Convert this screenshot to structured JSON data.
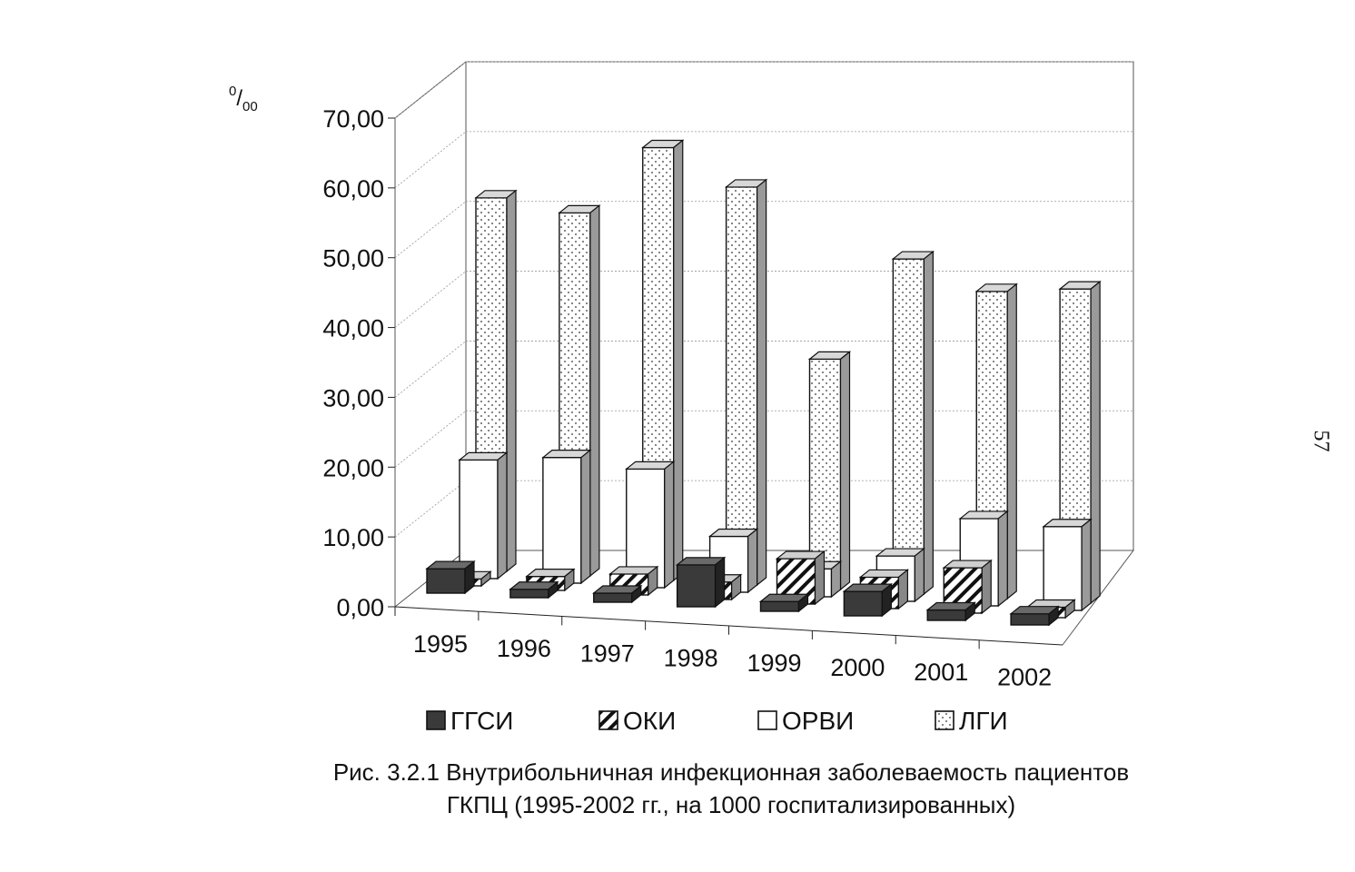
{
  "chart_data": {
    "type": "bar",
    "style": "3d-clustered-depth",
    "categories": [
      "1995",
      "1996",
      "1997",
      "1998",
      "1999",
      "2000",
      "2001",
      "2002"
    ],
    "series": [
      {
        "name": "ГГСИ",
        "values": [
          3.5,
          1.2,
          1.3,
          6.0,
          1.4,
          3.5,
          1.5,
          1.6
        ],
        "pattern": "solid-dark"
      },
      {
        "name": "ОКИ",
        "values": [
          1.0,
          2.0,
          3.0,
          2.5,
          6.5,
          4.5,
          6.5,
          1.5
        ],
        "pattern": "diagonal-hatch"
      },
      {
        "name": "ОРВИ",
        "values": [
          17.0,
          18.0,
          17.0,
          8.0,
          4.0,
          6.5,
          12.5,
          12.0
        ],
        "pattern": "white"
      },
      {
        "name": "ЛГИ",
        "values": [
          53.5,
          52.0,
          62.0,
          57.0,
          33.0,
          48.0,
          44.0,
          45.0
        ],
        "pattern": "dotted"
      }
    ],
    "ylim": [
      0,
      70
    ],
    "yticks": [
      "0,00",
      "10,00",
      "20,00",
      "30,00",
      "40,00",
      "50,00",
      "60,00",
      "70,00"
    ],
    "yunit": {
      "base": "0",
      "slash": "/",
      "sub": "00"
    },
    "grid": true,
    "legend_position": "bottom",
    "colors": {
      "dark": "#3a3a3a",
      "light_top": "#d8d8d8",
      "side": "#9a9a9a",
      "line": "#111111"
    }
  },
  "caption": {
    "line1": "Рис. 3.2.1 Внутрибольничная инфекционная заболеваемость пациентов",
    "line2": "ГКПЦ (1995-2002 гг., на 1000 госпитализированных)"
  },
  "page_number": "57"
}
